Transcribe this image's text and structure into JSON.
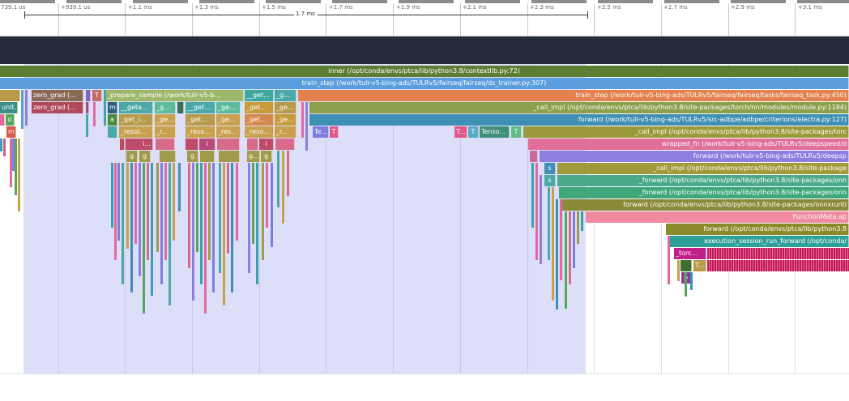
{
  "colors": {
    "dark_band": "#252b38",
    "selection": "#dcdff7",
    "ruler_bar": "#8c8c8c"
  },
  "ruler": {
    "ticks": [
      "739.1 us",
      "+939.1 us",
      "+1.1 ms",
      "+1.3 ms",
      "+1.5 ms",
      "+1.7 ms",
      "+1.9 ms",
      "+2.1 ms",
      "+2.3 ms",
      "+2.5 ms",
      "+2.7 ms",
      "+2.9 ms",
      "+3.1 ms"
    ],
    "span_label": "1.7 ms"
  },
  "flame": {
    "rows": [
      {
        "label": "inner (/opt/conda/envs/ptca/lib/python3.8/contextlib.py:72)"
      },
      {
        "label": "train_step (/work/tulr-v5-bing-ads/TULRv5/fairseq/fairseq/ds_trainer.py:307)"
      },
      {
        "label": "train_step (/work/tulr-v5-bing-ads/TULRv5/fairseq/fairseq/tasks/fairseq_task.py:450)"
      },
      {
        "label": "_call_impl (/opt/conda/envs/ptca/lib/python3.8/site-packages/torch/nn/modules/module.py:1184)"
      },
      {
        "label": "forward (/work/tulr-v5-bing-ads/TULRv5/src-adbpe/adbpe/criterions/electra.py:127)"
      },
      {
        "label": "_call_impl (/opt/conda/envs/ptca/lib/python3.8/site-packages/torc"
      },
      {
        "label": "wrapped_fn (/work/tulr-v5-bing-ads/TULRv5/deepspeed/d"
      },
      {
        "label": "forward (/work/tulr-v5-bing-ads/TULRv5/deepsp"
      },
      {
        "label": "_call_impl (/opt/conda/envs/ptca/lib/python3.8/site-package"
      },
      {
        "label": "_forward (/opt/conda/envs/ptca/lib/python3.8/site-packages/onn"
      },
      {
        "label": "_forward (/opt/conda/envs/ptca/lib/python3.8/site-packages/onn"
      },
      {
        "label": "forward (/opt/conda/envs/ptca/lib/python3.8/site-packages/onnxrunti"
      },
      {
        "label": "FunctionMeta.ap"
      },
      {
        "label": "forward (/opt/conda/envs/ptca/lib/python3.8"
      },
      {
        "label": "execution_session_run_forward (/opt/conda/"
      }
    ],
    "small_labels": {
      "zero_grad_1": "zero_grad (...",
      "zero_grad_2": "zero_grad (...",
      "prepare_sample": "_prepare_sample (/work/tulr-v5-b...",
      "get_1": "__get...",
      "get_2": "_g...",
      "t_1": "T",
      "unit": "unit...",
      "m_1": "m",
      "geta": "__geta...",
      "ge_1": "_g...",
      "get_3": "__get...",
      "ge_2": "_ge...",
      "get_4": "_get...",
      "ge_3": "_ge...",
      "a_1": "a",
      "get_i": "_get_i...",
      "ge_4": "_ge...",
      "get_5": "_get...",
      "ge_5": "_ge...",
      "get_6": "_get...",
      "ge_6": "_ge...",
      "o_1": "o",
      "m_2": "m",
      "resol": "_resol...",
      "r_1": "_r...",
      "reso_1": "_reso...",
      "res": "_res...",
      "reso_2": "_reso...",
      "r_2": "_r...",
      "te": "Te...",
      "t_2": "T",
      "t_3": "T...",
      "t_4": "T",
      "tenso": "Tenso...",
      "t_5": "T",
      "i_1": "i...",
      "i_2": "i",
      "i_3": "i",
      "g_1": "g",
      "g_2": "g",
      "g_3": "g",
      "g_4": "g...",
      "g_5": "g",
      "s_1": "s",
      "s_2": "s",
      "torc": "_torc...",
      "t_6": "T...",
      "p_1": "p"
    }
  }
}
